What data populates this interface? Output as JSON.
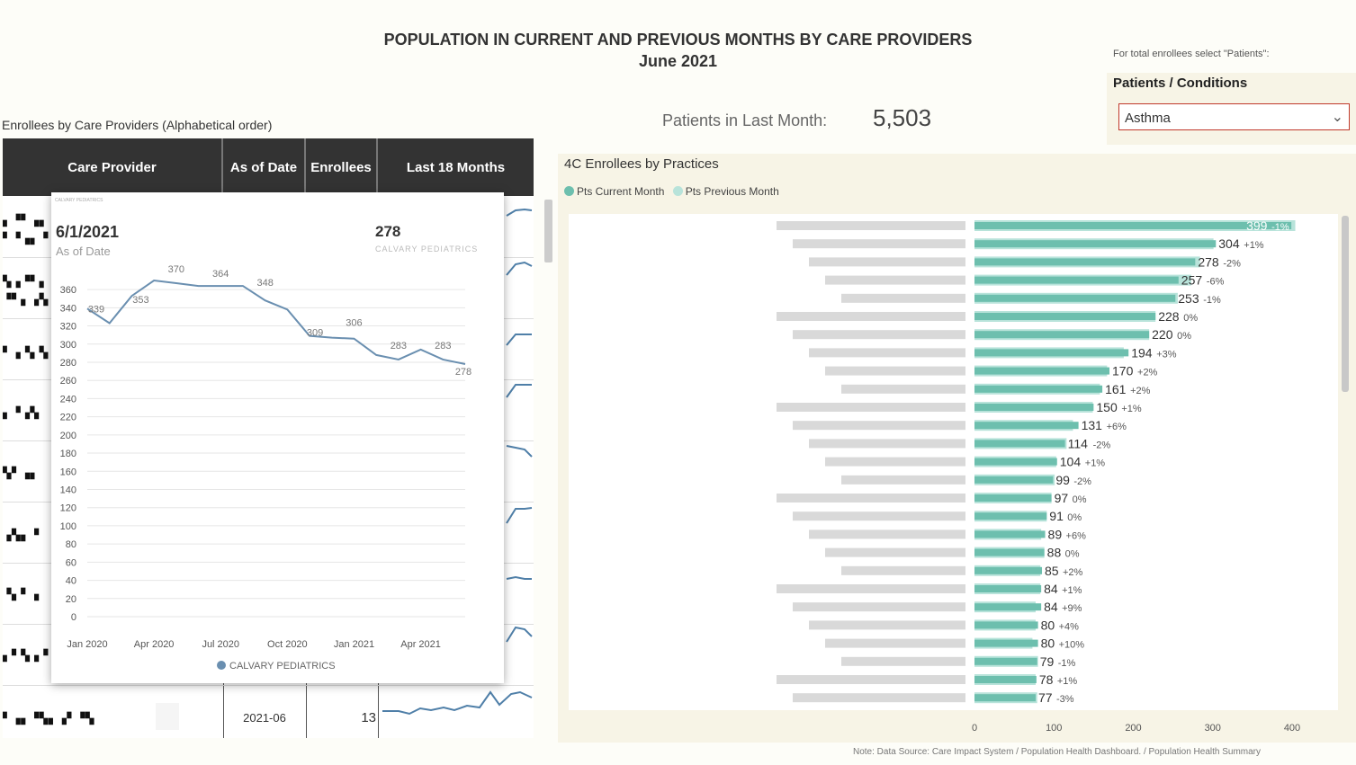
{
  "header": {
    "title_line1": "POPULATION IN CURRENT AND PREVIOUS MONTHS BY CARE PROVIDERS",
    "title_line2": "June 2021"
  },
  "filter": {
    "hint": "For total enrollees select \"Patients\":",
    "label": "Patients / Conditions",
    "selected": "Asthma"
  },
  "kpi": {
    "label": "Patients in Last Month:",
    "value": "5,503"
  },
  "table": {
    "title": "Enrollees by Care Providers (Alphabetical order)",
    "columns": [
      "Care Provider",
      "As of Date",
      "Enrollees",
      "Last 18 Months"
    ],
    "visible_row": {
      "as_of": "2021-06",
      "enrollees": "13"
    }
  },
  "tooltip": {
    "small_label": "CALVARY PEDIATRICS",
    "date": "6/1/2021",
    "date_label": "As of Date",
    "value": "278",
    "value_label": "CALVARY PEDIATRICS",
    "legend": "CALVARY PEDIATRICS",
    "line_color": "#6a8fb0"
  },
  "chart_data": [
    {
      "type": "line",
      "series": [
        {
          "name": "CALVARY PEDIATRICS",
          "values": [
            339,
            323,
            353,
            370,
            367,
            364,
            364,
            364,
            348,
            338,
            309,
            307,
            306,
            288,
            283,
            294,
            283,
            278
          ]
        }
      ],
      "point_labels": [
        "339",
        "353",
        "370",
        "364",
        "348",
        "309",
        "306",
        "283",
        "283",
        "278"
      ],
      "x_tick_labels": [
        "Jan 2020",
        "Apr 2020",
        "Jul 2020",
        "Oct 2020",
        "Jan 2021",
        "Apr 2021"
      ],
      "y_tick_labels": [
        "0",
        "20",
        "40",
        "60",
        "80",
        "100",
        "120",
        "140",
        "160",
        "180",
        "200",
        "220",
        "240",
        "260",
        "280",
        "300",
        "320",
        "340",
        "360"
      ],
      "ylim": [
        0,
        370
      ]
    },
    {
      "type": "bar",
      "title": "4C Enrollees by Practices",
      "legend": [
        "Pts Current Month",
        "Pts Previous Month"
      ],
      "colors": {
        "current": "#6dbfae",
        "previous": "#b8e3da"
      },
      "values": [
        399,
        304,
        278,
        257,
        253,
        228,
        220,
        194,
        170,
        161,
        150,
        131,
        114,
        104,
        99,
        97,
        91,
        89,
        88,
        85,
        84,
        84,
        80,
        80,
        79,
        78,
        77
      ],
      "previous_values": [
        404,
        301,
        284,
        273,
        256,
        228,
        220,
        188,
        167,
        158,
        149,
        124,
        116,
        103,
        101,
        97,
        91,
        84,
        88,
        83,
        83,
        77,
        77,
        73,
        80,
        77,
        79
      ],
      "change_labels": [
        "-1%",
        "+1%",
        "-2%",
        "-6%",
        "-1%",
        "0%",
        "0%",
        "+3%",
        "+2%",
        "+2%",
        "+1%",
        "+6%",
        "-2%",
        "+1%",
        "-2%",
        "0%",
        "0%",
        "+6%",
        "0%",
        "+2%",
        "+1%",
        "+9%",
        "+4%",
        "+10%",
        "-1%",
        "+1%",
        "-3%"
      ],
      "x_tick_labels": [
        "0",
        "100",
        "200",
        "300",
        "400"
      ],
      "xlim": [
        0,
        410
      ]
    }
  ],
  "note": "Note: Data Source: Care Impact System / Population Health Dashboard. / Population Health Summary"
}
